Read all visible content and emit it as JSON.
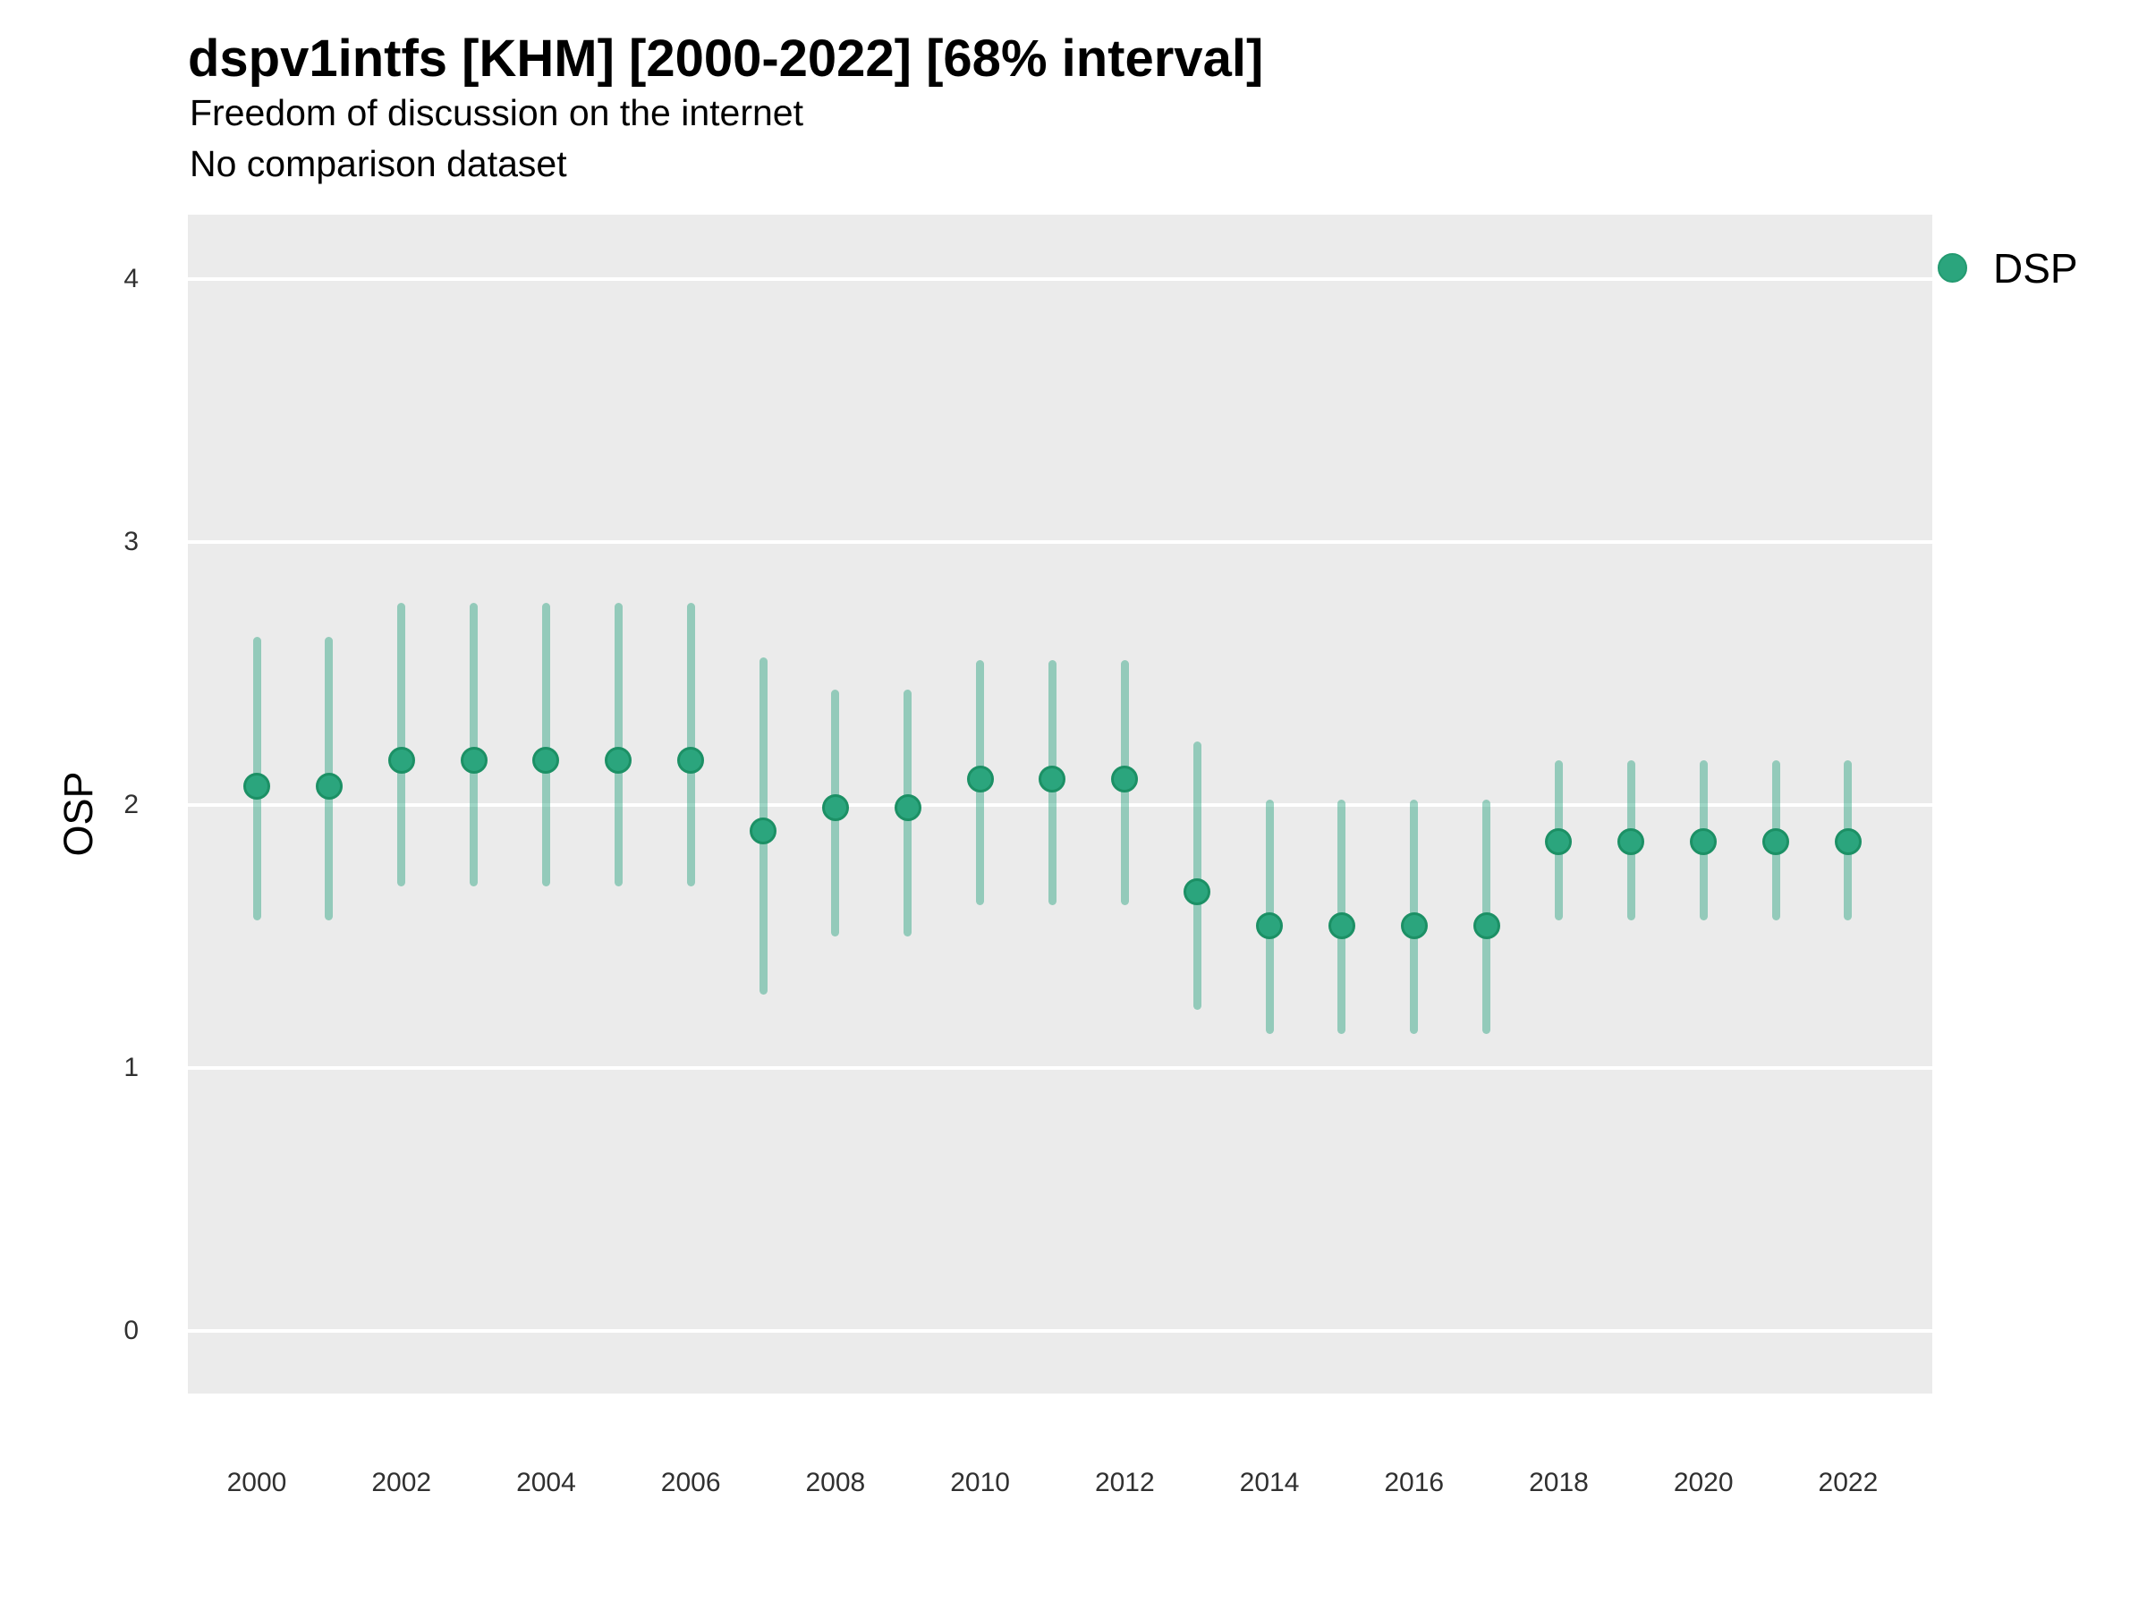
{
  "title": "dspv1intfs [KHM] [2000-2022] [68% interval]",
  "subtitle_line1": "Freedom of discussion on the internet",
  "subtitle_line2": "No comparison dataset",
  "y_axis": {
    "title": "OSP",
    "ticks": [
      4,
      3,
      2,
      1,
      0
    ]
  },
  "x_axis": {
    "ticks": [
      2000,
      2002,
      2004,
      2006,
      2008,
      2010,
      2012,
      2014,
      2016,
      2018,
      2020,
      2022
    ]
  },
  "legend": {
    "label": "DSP",
    "position": "right",
    "marker_color": "#2BA57D"
  },
  "colors": {
    "point_fill": "#2BA57D",
    "point_border": "#1C9065",
    "interval_line": "rgba(27,158,119,0.42)",
    "panel_background": "#EBEBEB",
    "gridline": "#FFFFFF"
  },
  "chart_data": {
    "type": "pointrange",
    "title": "dspv1intfs [KHM] [2000-2022] [68% interval]",
    "subtitle": "Freedom of discussion on the internet",
    "note": "No comparison dataset",
    "xlabel": "",
    "ylabel": "OSP",
    "ylim": [
      -0.24,
      4.24
    ],
    "yticks": [
      0,
      1,
      2,
      3,
      4
    ],
    "xticks": [
      2000,
      2002,
      2004,
      2006,
      2008,
      2010,
      2012,
      2014,
      2016,
      2018,
      2020,
      2022
    ],
    "grid": "horizontal-only",
    "legend_position": "right",
    "interval_level": "68%",
    "series": [
      {
        "name": "DSP",
        "x": [
          2000,
          2001,
          2002,
          2003,
          2004,
          2005,
          2006,
          2007,
          2008,
          2009,
          2010,
          2011,
          2012,
          2013,
          2014,
          2015,
          2016,
          2017,
          2018,
          2019,
          2020,
          2021,
          2022
        ],
        "values": [
          2.07,
          2.07,
          2.17,
          2.17,
          2.17,
          2.17,
          2.17,
          1.9,
          1.99,
          1.99,
          2.1,
          2.1,
          2.1,
          1.67,
          1.54,
          1.54,
          1.54,
          1.54,
          1.86,
          1.86,
          1.86,
          1.86,
          1.86
        ],
        "lower": [
          1.56,
          1.56,
          1.69,
          1.69,
          1.69,
          1.69,
          1.69,
          1.28,
          1.5,
          1.5,
          1.62,
          1.62,
          1.62,
          1.22,
          1.13,
          1.13,
          1.13,
          1.13,
          1.56,
          1.56,
          1.56,
          1.56,
          1.56
        ],
        "upper": [
          2.64,
          2.64,
          2.77,
          2.77,
          2.77,
          2.77,
          2.77,
          2.56,
          2.44,
          2.44,
          2.55,
          2.55,
          2.55,
          2.24,
          2.02,
          2.02,
          2.02,
          2.02,
          2.17,
          2.17,
          2.17,
          2.17,
          2.17
        ]
      }
    ]
  }
}
